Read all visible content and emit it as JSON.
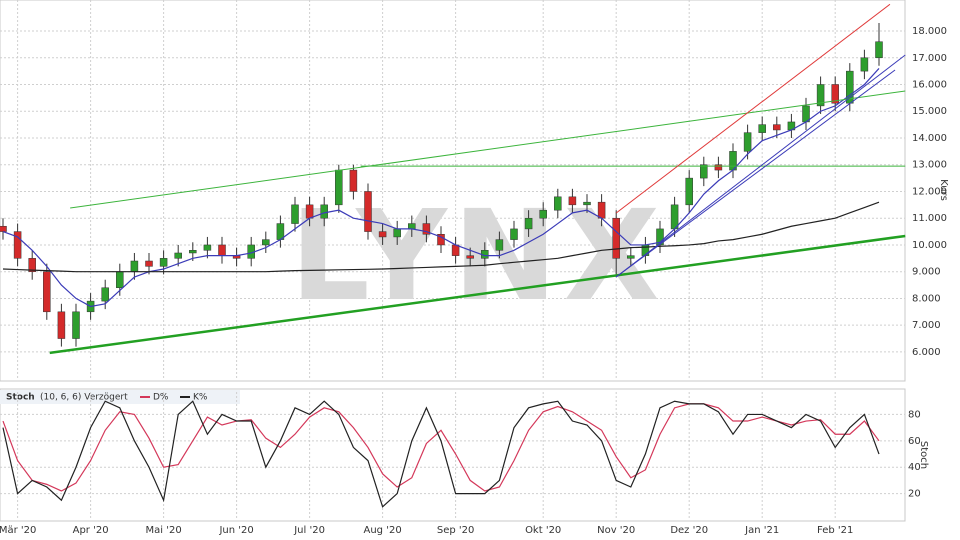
{
  "chart_data": [
    {
      "type": "candlestick",
      "watermark": "LYNX",
      "ylabel": "Kurs",
      "categories": [
        null,
        "Mär '20",
        null,
        null,
        null,
        null,
        "Apr '20",
        null,
        null,
        null,
        null,
        "Mai '20",
        null,
        null,
        null,
        null,
        "Jun '20",
        null,
        null,
        null,
        null,
        "Jul '20",
        null,
        null,
        null,
        null,
        "Aug '20",
        null,
        null,
        null,
        null,
        "Sep '20",
        null,
        null,
        null,
        null,
        null,
        "Okt '20",
        null,
        null,
        null,
        null,
        "Nov '20",
        null,
        null,
        null,
        null,
        "Dez '20",
        null,
        null,
        null,
        null,
        "Jan '21",
        null,
        null,
        null,
        null,
        "Feb '21",
        null,
        null,
        null
      ],
      "open": [
        10700,
        10500,
        9500,
        9000,
        7500,
        6500,
        7500,
        7900,
        8400,
        9000,
        9400,
        9200,
        9500,
        9700,
        9800,
        10000,
        9600,
        9500,
        10000,
        10200,
        10800,
        11500,
        11000,
        11500,
        12800,
        12000,
        10500,
        10300,
        10600,
        10800,
        10400,
        10000,
        9600,
        9500,
        9800,
        10200,
        10600,
        11000,
        11300,
        11800,
        11500,
        11600,
        11000,
        9500,
        9600,
        10000,
        10600,
        11500,
        12500,
        13000,
        12800,
        13500,
        14200,
        14500,
        14300,
        14600,
        15200,
        16000,
        15300,
        16500,
        17000
      ],
      "high": [
        11000,
        10800,
        9800,
        9300,
        7800,
        7800,
        8200,
        8700,
        9300,
        9700,
        9700,
        9800,
        10000,
        10100,
        10300,
        10300,
        9900,
        10300,
        10500,
        11100,
        11800,
        11800,
        11800,
        13000,
        13000,
        12300,
        10800,
        10900,
        11100,
        11100,
        10700,
        10300,
        9900,
        10100,
        10500,
        10900,
        11300,
        11600,
        12100,
        12100,
        11900,
        11900,
        11300,
        9900,
        10300,
        10900,
        11800,
        12800,
        13300,
        13300,
        13800,
        14500,
        14800,
        14800,
        14900,
        15500,
        16300,
        16300,
        16800,
        17300,
        18300
      ],
      "low": [
        10200,
        9200,
        8700,
        7200,
        6200,
        6200,
        7200,
        7600,
        8100,
        8700,
        8900,
        8900,
        9200,
        9400,
        9500,
        9300,
        9200,
        9200,
        9700,
        9900,
        10500,
        10700,
        10700,
        11200,
        11700,
        10200,
        10000,
        10000,
        10300,
        10100,
        9700,
        9300,
        9200,
        9200,
        9500,
        9900,
        10300,
        10700,
        11000,
        11200,
        11200,
        10700,
        8800,
        9200,
        9300,
        9700,
        10300,
        11200,
        12200,
        12500,
        12500,
        13200,
        13900,
        14000,
        14000,
        14300,
        14900,
        15000,
        15000,
        16200,
        16700
      ],
      "close": [
        10500,
        9500,
        9000,
        7500,
        6500,
        7500,
        7900,
        8400,
        9000,
        9400,
        9200,
        9500,
        9700,
        9800,
        10000,
        9600,
        9500,
        10000,
        10200,
        10800,
        11500,
        11000,
        11500,
        12800,
        12000,
        10500,
        10300,
        10600,
        10800,
        10400,
        10000,
        9600,
        9500,
        9800,
        10200,
        10600,
        11000,
        11300,
        11800,
        11500,
        11600,
        11000,
        9500,
        9600,
        10000,
        10600,
        11500,
        12500,
        13000,
        12800,
        13500,
        14200,
        14500,
        14300,
        14600,
        15200,
        16000,
        15300,
        16500,
        17000,
        17600
      ],
      "up_color": "#2e9e2e",
      "down_color": "#d42a2a",
      "series": [
        {
          "color": "#3b3bb8",
          "values": [
            10500,
            10300,
            9800,
            9200,
            8500,
            8000,
            7700,
            7800,
            8300,
            8800,
            9000,
            9100,
            9300,
            9500,
            9600,
            9600,
            9600,
            9700,
            9900,
            10200,
            10600,
            11000,
            11200,
            11300,
            11000,
            10900,
            10800,
            10600,
            10600,
            10500,
            10300,
            10000,
            9800,
            9600,
            9600,
            9800,
            10100,
            10400,
            10800,
            11200,
            11300,
            11000,
            10500,
            10000,
            10000,
            10100,
            10600,
            11200,
            11900,
            12400,
            12800,
            13400,
            13900,
            14100,
            14300,
            14600,
            15000,
            15200,
            15600,
            16000,
            16600
          ]
        },
        {
          "color": "#222222",
          "values": [
            9100,
            9080,
            9060,
            9040,
            9020,
            9000,
            9000,
            9000,
            9000,
            9000,
            9000,
            9000,
            9000,
            9000,
            9000,
            9000,
            9000,
            9000,
            9000,
            9020,
            9040,
            9050,
            9060,
            9070,
            9080,
            9090,
            9100,
            9120,
            9140,
            9160,
            9180,
            9200,
            9220,
            9240,
            9300,
            9350,
            9400,
            9450,
            9500,
            9600,
            9700,
            9800,
            9850,
            9900,
            9920,
            9950,
            9970,
            10000,
            10050,
            10150,
            10200,
            10300,
            10400,
            10550,
            10700,
            10800,
            10900,
            11000,
            11200,
            11400,
            11600
          ]
        }
      ],
      "trendlines": [
        {
          "color": "#3cb43c",
          "width": 1,
          "x": [
            4.6,
            61.8
          ],
          "values": [
            11383,
            15757
          ]
        },
        {
          "color": "#3cb43c",
          "width": 1,
          "x": [
            24.5,
            61.8
          ],
          "values": [
            12950,
            12950
          ]
        },
        {
          "color": "#22a022",
          "width": 2.5,
          "x": [
            3.2,
            61.8
          ],
          "values": [
            5963,
            10336
          ]
        },
        {
          "color": "#e03a3a",
          "width": 1,
          "x": [
            42,
            60.75
          ],
          "values": [
            11196,
            19000
          ]
        },
        {
          "color": "#3b3bb8",
          "width": 1,
          "x": [
            42,
            61.8
          ],
          "values": [
            8804,
            17103
          ]
        },
        {
          "color": "#3b3bb8",
          "width": 1,
          "x": [
            42,
            61.1
          ],
          "values": [
            8804,
            16542
          ]
        }
      ],
      "ylim": [
        4950,
        19160
      ],
      "yticks": [
        {
          "value": 6000,
          "label": "6.000"
        },
        {
          "value": 7000,
          "label": "7.000"
        },
        {
          "value": 8000,
          "label": "8.000"
        },
        {
          "value": 9000,
          "label": "9.000"
        },
        {
          "value": 10000,
          "label": "10.000"
        },
        {
          "value": 11000,
          "label": "11.000"
        },
        {
          "value": 12000,
          "label": "12.000"
        },
        {
          "value": 13000,
          "label": "13.000"
        },
        {
          "value": 14000,
          "label": "14.000"
        },
        {
          "value": 15000,
          "label": "15.000"
        },
        {
          "value": 16000,
          "label": "16.000"
        },
        {
          "value": 17000,
          "label": "17.000"
        },
        {
          "value": 18000,
          "label": "18.000"
        }
      ],
      "grid": true
    },
    {
      "type": "line",
      "title": "Stoch",
      "subtitle": "(10, 6, 6) Verzögert",
      "ylabel": "Stoch",
      "series": [
        {
          "name": "D%",
          "color": "#d4385a",
          "values": [
            75,
            45,
            30,
            27,
            22,
            28,
            45,
            68,
            82,
            80,
            62,
            40,
            42,
            60,
            78,
            72,
            75,
            76,
            62,
            55,
            65,
            78,
            85,
            82,
            70,
            55,
            35,
            25,
            32,
            58,
            68,
            50,
            30,
            22,
            25,
            45,
            68,
            82,
            86,
            82,
            75,
            68,
            48,
            32,
            38,
            65,
            85,
            88,
            88,
            85,
            75,
            75,
            78,
            75,
            72,
            75,
            76,
            65,
            65,
            75,
            60
          ]
        },
        {
          "name": "K%",
          "color": "#222222",
          "values": [
            70,
            20,
            30,
            25,
            15,
            40,
            70,
            90,
            85,
            60,
            40,
            15,
            80,
            90,
            65,
            80,
            75,
            75,
            40,
            60,
            85,
            80,
            90,
            80,
            55,
            45,
            10,
            20,
            60,
            85,
            60,
            20,
            20,
            20,
            30,
            70,
            85,
            88,
            90,
            75,
            72,
            60,
            30,
            25,
            50,
            85,
            90,
            88,
            88,
            82,
            65,
            80,
            80,
            75,
            70,
            80,
            75,
            55,
            70,
            80,
            50
          ]
        }
      ],
      "ylim": [
        0,
        97
      ],
      "yticks": [
        20,
        40,
        60,
        80
      ],
      "grid": true
    }
  ]
}
